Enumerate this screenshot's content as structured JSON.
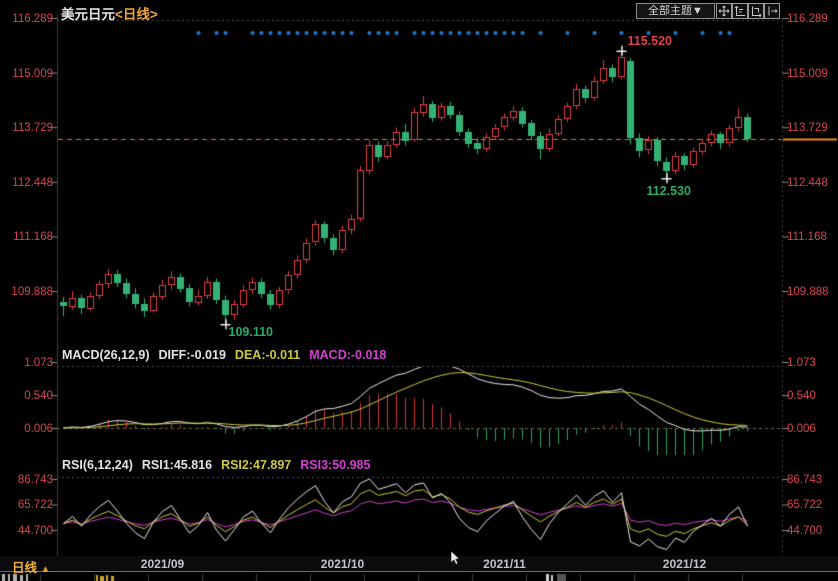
{
  "header": {
    "instrument": "美元日元",
    "period_tag": "<日线>"
  },
  "toolbar": {
    "theme_selector": "全部主题▼",
    "icons": [
      "crosshair",
      "scale-y-axis",
      "scale-x-axis",
      "shift-right"
    ]
  },
  "macd_header": {
    "name": "MACD(26,12,9)",
    "diff": "DIFF:-0.019",
    "dea": "DEA:-0.011",
    "macd": "MACD:-0.018"
  },
  "rsi_header": {
    "name": "RSI(6,12,24)",
    "rsi1": "RSI1:45.816",
    "rsi2": "RSI2:47.897",
    "rsi3": "RSI3:50.985"
  },
  "bottom_bar": {
    "period_label": "日线",
    "period_caret": "▲"
  },
  "colors": {
    "up_candle": "#e04045",
    "down_candle": "#34b275",
    "diff_line": "#e9e9e9",
    "dea_line": "#cdc83c",
    "macd_value": "#d43fd4",
    "axis_text": "#d8434e",
    "event_dot": "#1f77cb",
    "price_dash_line": "#c9882e",
    "price_marker": "#ef8c17"
  },
  "chart_data": {
    "type": "candlestick",
    "instrument": "美元日元",
    "timeframe": "daily",
    "x_axis": {
      "month_ticks": [
        {
          "label": "2021/09",
          "index": 11
        },
        {
          "label": "2021/10",
          "index": 31
        },
        {
          "label": "2021/11",
          "index": 49
        },
        {
          "label": "2021/12",
          "index": 69
        }
      ]
    },
    "panels": {
      "price": {
        "y_ticks": [
          "116.289",
          "115.009",
          "113.729",
          "112.448",
          "111.168",
          "109.888"
        ],
        "last_price": 113.45,
        "annotations": [
          {
            "label": "115.520",
            "index": 62,
            "at": "high",
            "color": "#e0404a"
          },
          {
            "label": "112.530",
            "index": 67,
            "at": "low",
            "color": "#2cab67"
          },
          {
            "label": "109.110",
            "index": 18,
            "at": "low",
            "color": "#2cab67"
          }
        ],
        "event_dot_indices": [
          15,
          17,
          18,
          21,
          22,
          23,
          24,
          25,
          26,
          27,
          28,
          29,
          30,
          31,
          32,
          34,
          35,
          36,
          37,
          39,
          40,
          41,
          42,
          43,
          44,
          45,
          46,
          47,
          48,
          49,
          50,
          51,
          53,
          56,
          59,
          62,
          65,
          68,
          71,
          73,
          74
        ],
        "candles": [
          [
            109.62,
            109.75,
            109.3,
            109.52
          ],
          [
            109.52,
            109.88,
            109.45,
            109.72
          ],
          [
            109.72,
            109.8,
            109.35,
            109.48
          ],
          [
            109.48,
            109.85,
            109.42,
            109.78
          ],
          [
            109.78,
            110.12,
            109.7,
            110.05
          ],
          [
            110.05,
            110.4,
            109.95,
            110.28
          ],
          [
            110.28,
            110.38,
            109.98,
            110.08
          ],
          [
            110.08,
            110.18,
            109.72,
            109.82
          ],
          [
            109.82,
            109.95,
            109.48,
            109.58
          ],
          [
            109.58,
            109.72,
            109.28,
            109.42
          ],
          [
            109.42,
            109.85,
            109.38,
            109.76
          ],
          [
            109.76,
            110.15,
            109.68,
            110.04
          ],
          [
            110.04,
            110.35,
            109.92,
            110.22
          ],
          [
            110.22,
            110.3,
            109.85,
            109.95
          ],
          [
            109.95,
            110.05,
            109.52,
            109.62
          ],
          [
            109.62,
            109.92,
            109.55,
            109.78
          ],
          [
            109.78,
            110.22,
            109.7,
            110.1
          ],
          [
            110.1,
            110.18,
            109.58,
            109.68
          ],
          [
            109.68,
            109.78,
            109.11,
            109.32
          ],
          [
            109.32,
            109.68,
            109.22,
            109.58
          ],
          [
            109.58,
            110.02,
            109.5,
            109.92
          ],
          [
            109.92,
            110.2,
            109.82,
            110.1
          ],
          [
            110.1,
            110.18,
            109.72,
            109.82
          ],
          [
            109.82,
            109.92,
            109.45,
            109.56
          ],
          [
            109.56,
            109.98,
            109.48,
            109.9
          ],
          [
            109.9,
            110.35,
            109.82,
            110.26
          ],
          [
            110.26,
            110.72,
            110.18,
            110.62
          ],
          [
            110.62,
            111.12,
            110.55,
            111.02
          ],
          [
            111.02,
            111.55,
            110.95,
            111.45
          ],
          [
            111.45,
            111.52,
            111.02,
            111.12
          ],
          [
            111.12,
            111.22,
            110.72,
            110.85
          ],
          [
            110.85,
            111.42,
            110.78,
            111.32
          ],
          [
            111.32,
            111.68,
            111.22,
            111.58
          ],
          [
            111.58,
            112.82,
            111.52,
            112.72
          ],
          [
            112.72,
            113.42,
            112.62,
            113.32
          ],
          [
            113.32,
            113.4,
            112.92,
            113.05
          ],
          [
            113.05,
            113.4,
            112.98,
            113.32
          ],
          [
            113.32,
            113.72,
            113.25,
            113.62
          ],
          [
            113.62,
            113.8,
            113.3,
            113.42
          ],
          [
            113.42,
            114.18,
            113.38,
            114.08
          ],
          [
            114.08,
            114.46,
            113.98,
            114.28
          ],
          [
            114.28,
            114.35,
            113.85,
            113.95
          ],
          [
            113.95,
            114.3,
            113.88,
            114.22
          ],
          [
            114.22,
            114.32,
            113.92,
            114.02
          ],
          [
            114.02,
            114.1,
            113.52,
            113.62
          ],
          [
            113.62,
            113.7,
            113.25,
            113.35
          ],
          [
            113.35,
            113.48,
            113.1,
            113.22
          ],
          [
            113.22,
            113.58,
            113.15,
            113.5
          ],
          [
            113.5,
            113.8,
            113.42,
            113.72
          ],
          [
            113.72,
            114.05,
            113.65,
            113.96
          ],
          [
            113.96,
            114.22,
            113.88,
            114.12
          ],
          [
            114.12,
            114.2,
            113.72,
            113.82
          ],
          [
            113.82,
            113.9,
            113.42,
            113.52
          ],
          [
            113.52,
            113.62,
            112.98,
            113.22
          ],
          [
            113.22,
            113.7,
            113.15,
            113.58
          ],
          [
            113.58,
            114.0,
            113.52,
            113.92
          ],
          [
            113.92,
            114.3,
            113.85,
            114.22
          ],
          [
            114.22,
            114.75,
            114.15,
            114.62
          ],
          [
            114.62,
            114.7,
            114.3,
            114.42
          ],
          [
            114.42,
            114.92,
            114.35,
            114.82
          ],
          [
            114.82,
            115.3,
            114.75,
            115.12
          ],
          [
            115.12,
            115.2,
            114.78,
            114.9
          ],
          [
            114.9,
            115.52,
            114.85,
            115.38
          ],
          [
            115.28,
            115.35,
            113.32,
            113.48
          ],
          [
            113.48,
            113.58,
            113.02,
            113.18
          ],
          [
            113.18,
            113.52,
            113.1,
            113.42
          ],
          [
            113.42,
            113.5,
            112.82,
            112.92
          ],
          [
            112.92,
            113.02,
            112.53,
            112.72
          ],
          [
            112.72,
            113.15,
            112.62,
            113.06
          ],
          [
            113.06,
            113.12,
            112.72,
            112.84
          ],
          [
            112.84,
            113.25,
            112.78,
            113.16
          ],
          [
            113.16,
            113.45,
            113.08,
            113.36
          ],
          [
            113.36,
            113.65,
            113.28,
            113.56
          ],
          [
            113.56,
            113.62,
            113.22,
            113.34
          ],
          [
            113.34,
            113.78,
            113.28,
            113.7
          ],
          [
            113.7,
            114.18,
            113.62,
            113.96
          ],
          [
            113.96,
            114.05,
            113.38,
            113.45
          ]
        ]
      },
      "macd": {
        "params": [
          26,
          12,
          9
        ],
        "y_ticks": [
          "1.073",
          "0.540",
          "0.006"
        ],
        "diff": -0.019,
        "dea": -0.011,
        "macd": -0.018
      },
      "rsi": {
        "params": [
          6,
          12,
          24
        ],
        "y_ticks": [
          "86.743",
          "65.722",
          "44.700"
        ],
        "rsi1": 45.816,
        "rsi2": 47.897,
        "rsi3": 50.985
      }
    }
  }
}
